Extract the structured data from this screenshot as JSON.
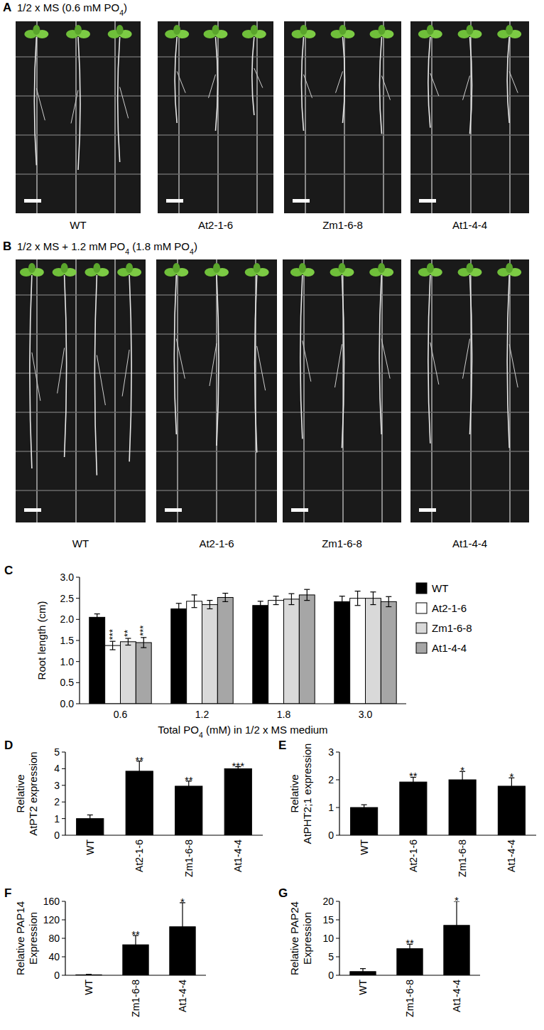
{
  "photo_panels": [
    {
      "label": "A",
      "title": "1/2 x MS (0.6 mM PO4)",
      "photos": [
        {
          "genotype": "WT",
          "seedlings": 3
        },
        {
          "genotype": "At2-1-6",
          "seedlings": 3
        },
        {
          "genotype": "Zm1-6-8",
          "seedlings": 3
        },
        {
          "genotype": "At1-4-4",
          "seedlings": 3
        }
      ]
    },
    {
      "label": "B",
      "title": "1/2 x MS + 1.2 mM PO4 (1.8 mM PO4)",
      "photos": [
        {
          "genotype": "WT",
          "seedlings": 4
        },
        {
          "genotype": "At2-1-6",
          "seedlings": 3
        },
        {
          "genotype": "Zm1-6-8",
          "seedlings": 3
        },
        {
          "genotype": "At1-4-4",
          "seedlings": 3
        }
      ]
    }
  ],
  "chart_data": [
    {
      "type": "bar",
      "panel_label": "C",
      "y_label": [
        "Root length (cm)"
      ],
      "x_label": "Total PO4 (mM) in 1/2 x MS medium",
      "categories": [
        "0.6",
        "1.2",
        "1.8",
        "3.0"
      ],
      "series": [
        {
          "name": "WT",
          "color": "#000000",
          "values": [
            2.05,
            2.25,
            2.33,
            2.42
          ],
          "errors": [
            0.08,
            0.13,
            0.1,
            0.13
          ],
          "significance": [
            null,
            null,
            null,
            null
          ]
        },
        {
          "name": "At2-1-6",
          "color": "#ffffff",
          "values": [
            1.38,
            2.43,
            2.45,
            2.5
          ],
          "errors": [
            0.1,
            0.15,
            0.1,
            0.17
          ],
          "significance": [
            "***",
            null,
            null,
            null
          ]
        },
        {
          "name": "Zm1-6-8",
          "color": "#d9d9d9",
          "values": [
            1.47,
            2.35,
            2.48,
            2.5
          ],
          "errors": [
            0.08,
            0.1,
            0.13,
            0.15
          ],
          "significance": [
            "**",
            null,
            null,
            null
          ]
        },
        {
          "name": "At1-4-4",
          "color": "#a6a6a6",
          "values": [
            1.45,
            2.52,
            2.58,
            2.42
          ],
          "errors": [
            0.12,
            0.1,
            0.13,
            0.12
          ],
          "significance": [
            "***",
            null,
            null,
            null
          ]
        }
      ],
      "ylim": [
        0,
        3
      ],
      "yticks": [
        {
          "value": 0,
          "label": "0.0"
        },
        {
          "value": 0.5,
          "label": "0.5"
        },
        {
          "value": 1,
          "label": "1.0"
        },
        {
          "value": 1.5,
          "label": "1.5"
        },
        {
          "value": 2,
          "label": "2.0"
        },
        {
          "value": 2.5,
          "label": "2.5"
        },
        {
          "value": 3,
          "label": "3.0"
        }
      ],
      "legend": "right",
      "grid": false
    },
    {
      "type": "bar",
      "panel_label": "D",
      "y_label": [
        "Relative",
        "AtPT2 expression"
      ],
      "categories": [
        "WT",
        "At2-1-6",
        "Zm1-6-8",
        "At1-4-4"
      ],
      "values": [
        1.0,
        3.85,
        2.95,
        4.0
      ],
      "errors": [
        0.22,
        0.6,
        0.3,
        0.12
      ],
      "significance": [
        null,
        "**",
        "**",
        "***"
      ],
      "color": "#000000",
      "ylim": [
        0,
        5
      ],
      "yticks": [
        0,
        1,
        2,
        3,
        4,
        5
      ],
      "grid": false
    },
    {
      "type": "bar",
      "panel_label": "E",
      "y_label": [
        "Relative",
        "AtPHT2;1 expression"
      ],
      "categories": [
        "WT",
        "At2-1-6",
        "Zm1-6-8",
        "At1-4-4"
      ],
      "values": [
        1.0,
        1.92,
        2.0,
        1.77
      ],
      "errors": [
        0.1,
        0.17,
        0.3,
        0.3
      ],
      "significance": [
        null,
        "**",
        "*",
        "*"
      ],
      "color": "#000000",
      "ylim": [
        0,
        3
      ],
      "yticks": [
        0,
        1,
        2,
        3
      ],
      "grid": false
    },
    {
      "type": "bar",
      "panel_label": "F",
      "y_label": [
        "Relative PAP14",
        "Expression"
      ],
      "categories": [
        "WT",
        "Zm1-6-8",
        "At1-4-4"
      ],
      "values": [
        1,
        66,
        105
      ],
      "errors": [
        1,
        20,
        52
      ],
      "significance": [
        null,
        "**",
        "*"
      ],
      "color": "#000000",
      "ylim": [
        0,
        160
      ],
      "yticks": [
        0,
        40,
        80,
        120,
        160
      ],
      "grid": false
    },
    {
      "type": "bar",
      "panel_label": "G",
      "y_label": [
        "Relative PAP24",
        "Expression"
      ],
      "categories": [
        "WT",
        "Zm1-6-8",
        "At1-4-4"
      ],
      "values": [
        1,
        7.2,
        13.5
      ],
      "errors": [
        0.8,
        1.2,
        6.5
      ],
      "significance": [
        null,
        "**",
        "*"
      ],
      "color": "#000000",
      "ylim": [
        0,
        20
      ],
      "yticks": [
        0,
        5,
        10,
        15,
        20
      ],
      "grid": false
    }
  ]
}
